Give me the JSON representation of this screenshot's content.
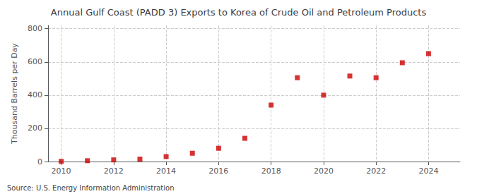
{
  "chart_data": {
    "type": "scatter",
    "title": "Annual Gulf Coast (PADD 3) Exports to Korea of Crude Oil and Petroleum Products",
    "ylabel": "Thousand Barrels per Day",
    "annotations": [
      "Source: U.S. Energy Information Administration"
    ],
    "x": [
      2010,
      2011,
      2012,
      2013,
      2014,
      2015,
      2016,
      2017,
      2018,
      2019,
      2020,
      2021,
      2022,
      2023,
      2024
    ],
    "values": [
      1,
      5,
      10,
      15,
      30,
      50,
      80,
      140,
      340,
      505,
      400,
      515,
      505,
      595,
      650
    ],
    "color": "#cc0000",
    "marker": "square",
    "xlim": [
      2009.5,
      2025.2
    ],
    "ylim": [
      0,
      820
    ],
    "xticks": [
      2010,
      2012,
      2014,
      2016,
      2018,
      2020,
      2022,
      2024
    ],
    "yticks": [
      0,
      200,
      400,
      600,
      800
    ],
    "grid": true
  }
}
